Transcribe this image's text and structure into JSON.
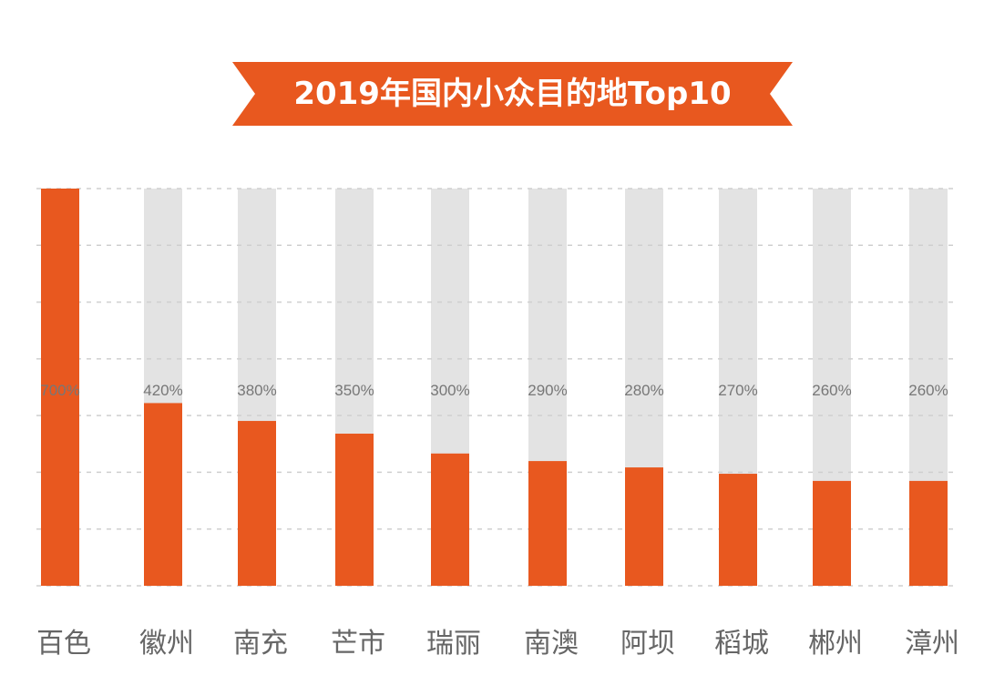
{
  "chart_data": {
    "type": "bar",
    "title": "2019年国内小众目的地Top10",
    "categories": [
      "百色",
      "徽州",
      "南充",
      "芒市",
      "瑞丽",
      "南澳",
      "阿坝",
      "稻城",
      "郴州",
      "漳州"
    ],
    "values": [
      700,
      420,
      380,
      350,
      300,
      290,
      280,
      270,
      260,
      260
    ],
    "data_labels": [
      "700%",
      "420%",
      "380%",
      "350%",
      "300%",
      "290%",
      "280%",
      "270%",
      "260%",
      "260%"
    ],
    "fill_fraction": [
      1.0,
      0.46,
      0.415,
      0.383,
      0.333,
      0.314,
      0.298,
      0.282,
      0.264,
      0.264
    ],
    "grid": true,
    "colors": {
      "bar": "#e8581f",
      "track": "#e3e3e3",
      "title_banner": "#e8581f",
      "grid": "#cfcfcf",
      "label": "#666666"
    }
  }
}
